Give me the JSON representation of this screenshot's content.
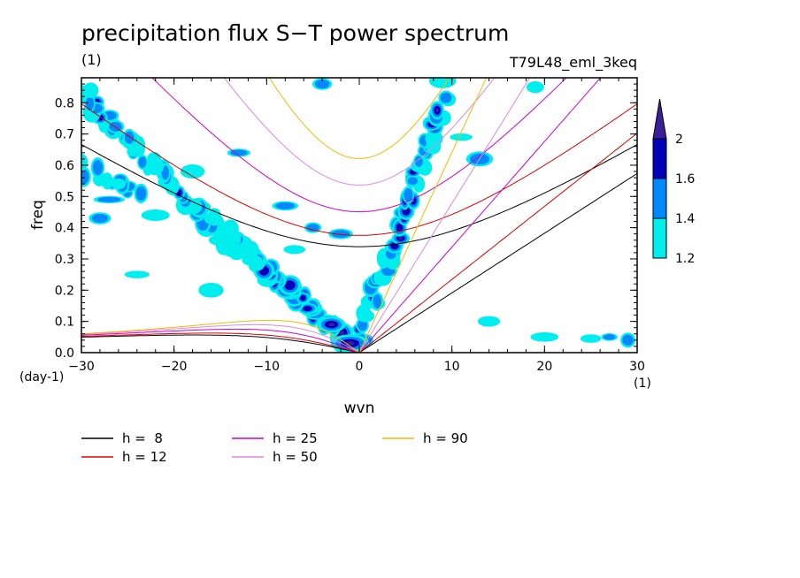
{
  "chart_data": {
    "type": "heatmap",
    "title": "precipitation flux S−T power spectrum",
    "subtitle_left": "(1)",
    "subtitle_right": "T79L48_eml_3keq",
    "xlabel": "wvn",
    "ylabel": "freq",
    "x_unit": "(1)",
    "y_unit": "(day-1)",
    "xlim": [
      -30,
      30
    ],
    "ylim": [
      0,
      0.88
    ],
    "x_ticks": [
      "−30",
      "−20",
      "−10",
      "0",
      "10",
      "20",
      "30"
    ],
    "x_tick_values": [
      -30,
      -20,
      -10,
      0,
      10,
      20,
      30
    ],
    "y_ticks": [
      "0.0",
      "0.1",
      "0.2",
      "0.3",
      "0.4",
      "0.5",
      "0.6",
      "0.7",
      "0.8"
    ],
    "y_tick_values": [
      0,
      0.1,
      0.2,
      0.3,
      0.4,
      0.5,
      0.6,
      0.7,
      0.8
    ],
    "colorbar": {
      "levels": [
        "1.2",
        "1.4",
        "1.6",
        "2"
      ],
      "level_values": [
        1.2,
        1.4,
        1.6,
        2.0
      ],
      "colors": [
        "#00eeee",
        "#0088ff",
        "#0000bb",
        "#3a1e9a"
      ]
    },
    "dispersion_curves": [
      {
        "label": "h =  8",
        "h": 8,
        "color": "#000000"
      },
      {
        "label": "h = 12",
        "h": 12,
        "color": "#dd0000"
      },
      {
        "label": "h = 25",
        "h": 25,
        "color": "#cc00cc"
      },
      {
        "label": "h = 50",
        "h": 50,
        "color": "#dd88dd"
      },
      {
        "label": "h = 90",
        "h": 90,
        "color": "#eebb00"
      }
    ],
    "features": [
      {
        "name": "kelvin-ridge",
        "from": [
          0,
          0
        ],
        "to": [
          9,
          0.85
        ]
      },
      {
        "name": "rossby-mjo-ridge",
        "from": [
          0,
          0
        ],
        "to": [
          -30,
          0.8
        ]
      }
    ]
  }
}
